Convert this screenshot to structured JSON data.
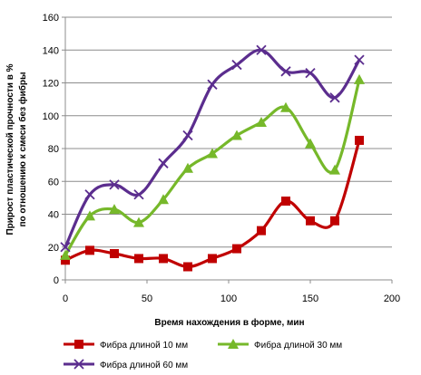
{
  "chart_data": {
    "type": "line",
    "title": "",
    "xlabel": "Время нахождения в форме, мин",
    "ylabel": [
      "Прирост пластической прочности в %",
      "по отношению к смеси без фибры"
    ],
    "xlim": [
      0,
      200
    ],
    "ylim": [
      0,
      160
    ],
    "xticks": [
      0,
      50,
      100,
      150,
      200
    ],
    "yticks": [
      0,
      20,
      40,
      60,
      80,
      100,
      120,
      140,
      160
    ],
    "grid": "horizontal",
    "legend_position": "bottom",
    "x": [
      0,
      15,
      30,
      45,
      60,
      75,
      90,
      105,
      120,
      135,
      150,
      165,
      180
    ],
    "series": [
      {
        "name": "Фибра длиной 10 мм",
        "color": "#c00000",
        "marker": "square",
        "values": [
          12,
          18,
          16,
          13,
          13,
          8,
          13,
          19,
          30,
          48,
          36,
          36,
          85
        ]
      },
      {
        "name": "Фибра длиной 30 мм",
        "color": "#76b82a",
        "marker": "triangle",
        "values": [
          15,
          39,
          43,
          35,
          49,
          68,
          77,
          88,
          96,
          105,
          83,
          67,
          122
        ]
      },
      {
        "name": "Фибра длиной 60 мм",
        "color": "#5b2d8e",
        "marker": "x",
        "values": [
          20,
          52,
          58,
          52,
          71,
          88,
          119,
          131,
          140,
          127,
          126,
          111,
          134
        ]
      }
    ]
  }
}
